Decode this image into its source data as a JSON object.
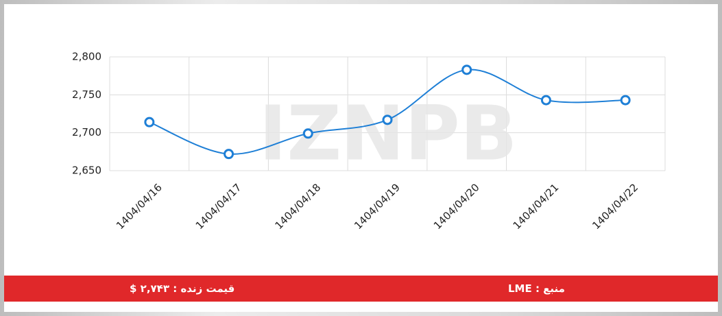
{
  "chart_data": {
    "type": "line",
    "watermark": "IZNPB",
    "categories": [
      "1404/04/16",
      "1404/04/17",
      "1404/04/18",
      "1404/04/19",
      "1404/04/20",
      "1404/04/21",
      "1404/04/22"
    ],
    "series": [
      {
        "color": "#1e7fd6",
        "values": [
          2714,
          2672,
          2699,
          2717,
          2783,
          2743,
          2743
        ]
      }
    ],
    "ylim": [
      2650,
      2800
    ],
    "yticks": [
      {
        "value": 2650,
        "label": "2,650"
      },
      {
        "value": 2700,
        "label": "2,700"
      },
      {
        "value": 2750,
        "label": "2,750"
      },
      {
        "value": 2800,
        "label": "2,800"
      }
    ],
    "grid": true
  },
  "footer": {
    "price": "قیمت زنده : ۲,۷۴۳ $",
    "source": "منبع : LME"
  }
}
